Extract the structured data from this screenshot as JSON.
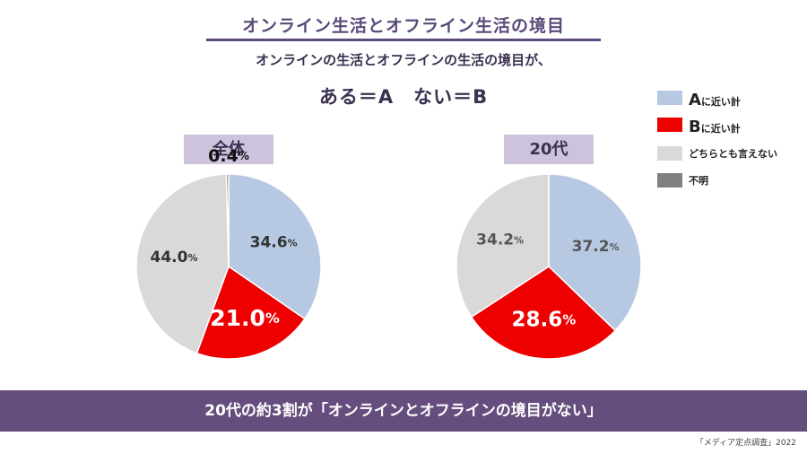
{
  "title": "オンライン生活とオフライン生活の境目",
  "subtitle": "オンラインの生活とオフラインの生活の境目が、",
  "formula": "ある＝A　ない＝B",
  "legend": [
    {
      "letter": "A",
      "text": "に近い計",
      "color": "#b7c9e2"
    },
    {
      "letter": "B",
      "text": "に近い計",
      "color": "#ee0000"
    },
    {
      "letter": "",
      "text": "どちらとも言えない",
      "color": "#d9d9d9"
    },
    {
      "letter": "",
      "text": "不明",
      "color": "#808080"
    }
  ],
  "footer": "20代の約3割が「オンラインとオフラインの境目がない」",
  "source": "「メディア定点調査」2022",
  "chart_data": [
    {
      "type": "pie",
      "title": "全体",
      "labels": [
        "Aに近い計",
        "Bに近い計",
        "どちらとも言えない",
        "不明"
      ],
      "values": [
        34.6,
        21.0,
        44.0,
        0.4
      ],
      "value_labels": [
        "34.6",
        "21.0",
        "44.0",
        "0.4"
      ],
      "colors": [
        "#b7c9e2",
        "#ee0000",
        "#d9d9d9",
        "#808080"
      ],
      "unit": "%"
    },
    {
      "type": "pie",
      "title": "20代",
      "labels": [
        "Aに近い計",
        "Bに近い計",
        "どちらとも言えない"
      ],
      "values": [
        37.2,
        28.6,
        34.2
      ],
      "value_labels": [
        "37.2",
        "28.6",
        "34.2"
      ],
      "colors": [
        "#b7c9e2",
        "#ee0000",
        "#d9d9d9"
      ],
      "unit": "%"
    }
  ]
}
